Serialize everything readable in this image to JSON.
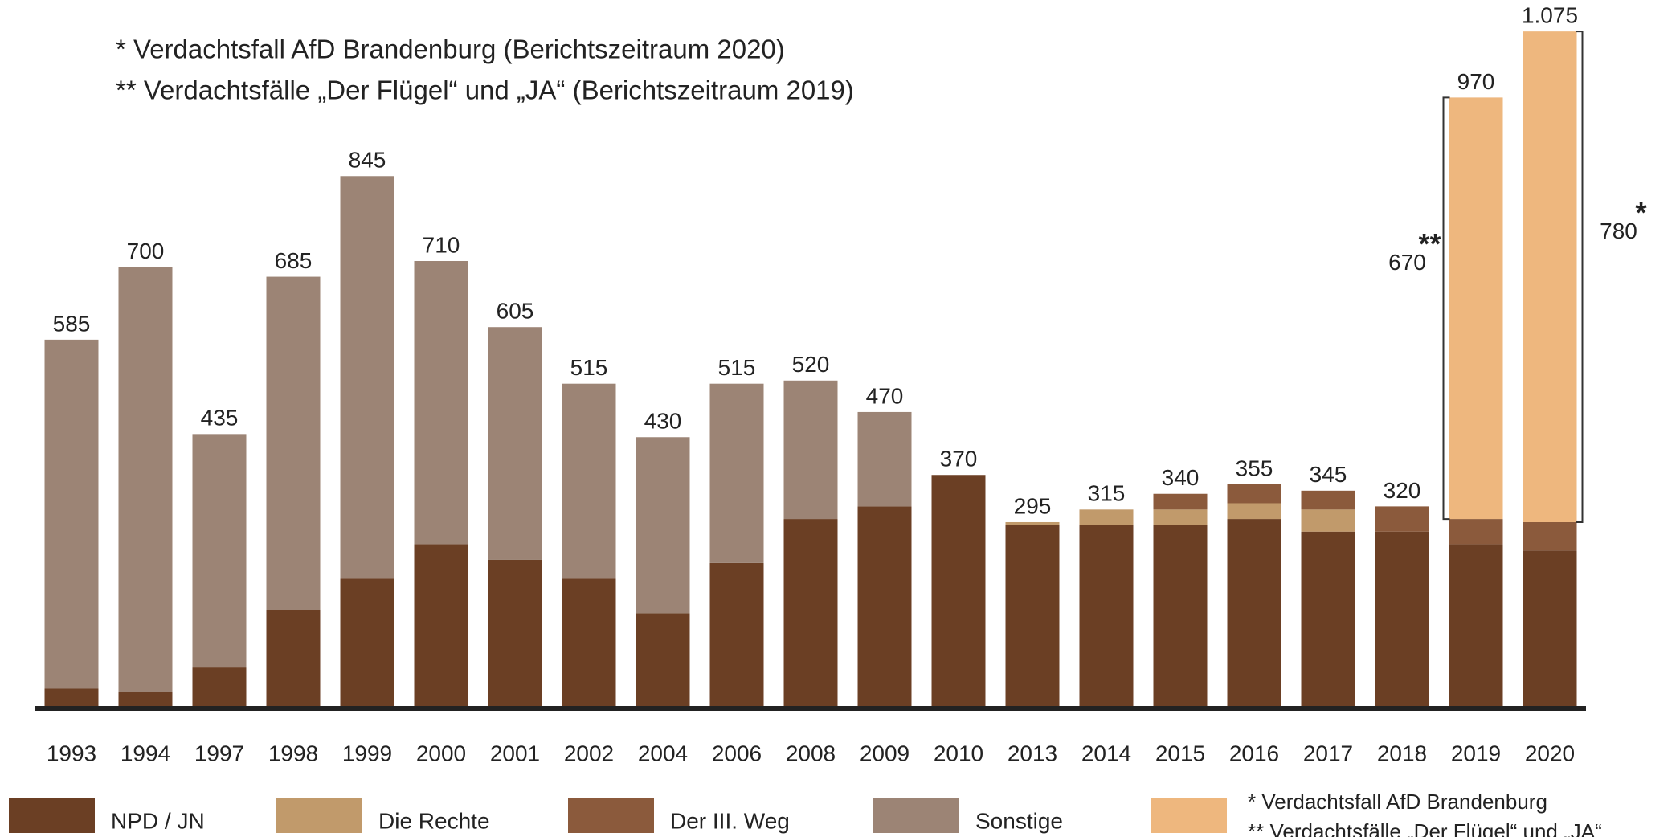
{
  "chart_data": {
    "type": "stacked-bar",
    "notes": [
      "* Verdachtsfall AfD Brandenburg (Berichtszeitraum 2020)",
      "** Verdachtsfälle „Der Flügel“ und „JA“ (Berichtszeitraum 2019)"
    ],
    "categories": [
      "1993",
      "1994",
      "1997",
      "1998",
      "1999",
      "2000",
      "2001",
      "2002",
      "2004",
      "2006",
      "2008",
      "2009",
      "2010",
      "2013",
      "2014",
      "2015",
      "2016",
      "2017",
      "2018",
      "2019",
      "2020"
    ],
    "series": [
      {
        "name": "NPD / JN",
        "color": "#6b3f24",
        "values": [
          30,
          25,
          65,
          155,
          205,
          260,
          235,
          205,
          150,
          230,
          300,
          320,
          370,
          290,
          290,
          290,
          300,
          280,
          280,
          260,
          250
        ]
      },
      {
        "name": "Die Rechte",
        "color": "#c19a6b",
        "values": [
          0,
          0,
          0,
          0,
          0,
          0,
          0,
          0,
          0,
          0,
          0,
          0,
          0,
          5,
          25,
          25,
          25,
          35,
          0,
          0,
          0
        ]
      },
      {
        "name": "Der III. Weg",
        "color": "#8b5a3c",
        "values": [
          0,
          0,
          0,
          0,
          0,
          0,
          0,
          0,
          0,
          0,
          0,
          0,
          0,
          0,
          0,
          25,
          30,
          30,
          40,
          40,
          45
        ]
      },
      {
        "name": "Sonstige",
        "color": "#9c8475",
        "values": [
          555,
          675,
          370,
          530,
          640,
          450,
          370,
          310,
          280,
          285,
          220,
          150,
          0,
          0,
          0,
          0,
          0,
          0,
          0,
          0,
          0
        ]
      },
      {
        "name": "* Verdachtsfall AfD Brandenburg",
        "color": "#eeb77e",
        "values": [
          0,
          0,
          0,
          0,
          0,
          0,
          0,
          0,
          0,
          0,
          0,
          0,
          0,
          0,
          0,
          0,
          0,
          0,
          0,
          670,
          780
        ]
      }
    ],
    "legend_note": "** Verdachtsfälle „Der Flügel“ und „JA“",
    "value_labels": [
      "585",
      "700",
      "435",
      "685",
      "845",
      "710",
      "605",
      "515",
      "430",
      "515",
      "520",
      "470",
      "370",
      "295",
      "315",
      "340",
      "355",
      "345",
      "320",
      "970",
      "1.075"
    ],
    "bracket_marks": [
      "**",
      "*"
    ],
    "ylim": [
      0,
      1125
    ]
  }
}
